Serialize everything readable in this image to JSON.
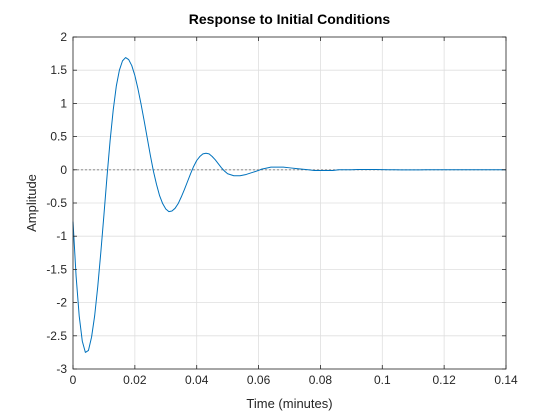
{
  "chart_data": {
    "type": "line",
    "title": "Response to Initial Conditions",
    "xlabel": "Time (minutes)",
    "ylabel": "Amplitude",
    "xlim": [
      0,
      0.14
    ],
    "ylim": [
      -3,
      2
    ],
    "xticks": [
      0,
      0.02,
      0.04,
      0.06,
      0.08,
      0.1,
      0.12,
      0.14
    ],
    "xtick_labels": [
      "0",
      "0.02",
      "0.04",
      "0.06",
      "0.08",
      "0.1",
      "0.12",
      "0.14"
    ],
    "yticks": [
      -3,
      -2.5,
      -2,
      -1.5,
      -1,
      -0.5,
      0,
      0.5,
      1,
      1.5,
      2
    ],
    "ytick_labels": [
      "-3",
      "-2.5",
      "-2",
      "-1.5",
      "-1",
      "-0.5",
      "0",
      "0.5",
      "1",
      "1.5",
      "2"
    ],
    "grid": true,
    "zero_line": true,
    "series": [
      {
        "color": "#0072BD",
        "x": [
          0,
          0.001,
          0.002,
          0.003,
          0.004,
          0.005,
          0.006,
          0.007,
          0.008,
          0.009,
          0.01,
          0.011,
          0.012,
          0.013,
          0.014,
          0.015,
          0.016,
          0.017,
          0.018,
          0.019,
          0.02,
          0.021,
          0.022,
          0.023,
          0.024,
          0.025,
          0.026,
          0.027,
          0.028,
          0.029,
          0.03,
          0.031,
          0.032,
          0.033,
          0.034,
          0.035,
          0.036,
          0.037,
          0.038,
          0.039,
          0.04,
          0.041,
          0.042,
          0.043,
          0.044,
          0.045,
          0.046,
          0.047,
          0.048,
          0.049,
          0.05,
          0.052,
          0.054,
          0.056,
          0.058,
          0.06,
          0.061,
          0.062,
          0.064,
          0.066,
          0.068,
          0.07,
          0.072,
          0.074,
          0.076,
          0.078,
          0.08,
          0.082,
          0.084,
          0.086,
          0.088,
          0.09,
          0.092,
          0.094,
          0.096,
          0.098,
          0.1,
          0.102,
          0.104,
          0.106,
          0.108,
          0.11,
          0.112,
          0.114,
          0.116,
          0.118,
          0.12,
          0.122,
          0.124,
          0.126,
          0.128,
          0.13,
          0.132,
          0.134,
          0.136,
          0.138,
          0.14
        ],
        "y": [
          -0.78,
          -1.6,
          -2.2,
          -2.58,
          -2.75,
          -2.72,
          -2.52,
          -2.2,
          -1.76,
          -1.24,
          -0.68,
          -0.1,
          0.44,
          0.9,
          1.26,
          1.5,
          1.64,
          1.69,
          1.66,
          1.57,
          1.42,
          1.22,
          0.99,
          0.74,
          0.48,
          0.22,
          -0.02,
          -0.22,
          -0.39,
          -0.51,
          -0.59,
          -0.63,
          -0.62,
          -0.58,
          -0.51,
          -0.41,
          -0.3,
          -0.18,
          -0.06,
          0.05,
          0.14,
          0.2,
          0.24,
          0.25,
          0.24,
          0.2,
          0.15,
          0.09,
          0.03,
          -0.02,
          -0.06,
          -0.09,
          -0.09,
          -0.07,
          -0.04,
          -0.01,
          0.01,
          0.02,
          0.04,
          0.04,
          0.04,
          0.03,
          0.02,
          0.01,
          0.0,
          -0.01,
          -0.01,
          -0.01,
          -0.01,
          0.0,
          0.0,
          0.0,
          0.005,
          0.005,
          0.005,
          0.004,
          0.003,
          0.001,
          0.0,
          -0.001,
          -0.002,
          -0.002,
          -0.001,
          0.0,
          0.0,
          0.001,
          0.001,
          0.001,
          0.0,
          0.0,
          0.0,
          0.0,
          0.0,
          0.0,
          0.0,
          0.0,
          0.0
        ]
      }
    ]
  }
}
